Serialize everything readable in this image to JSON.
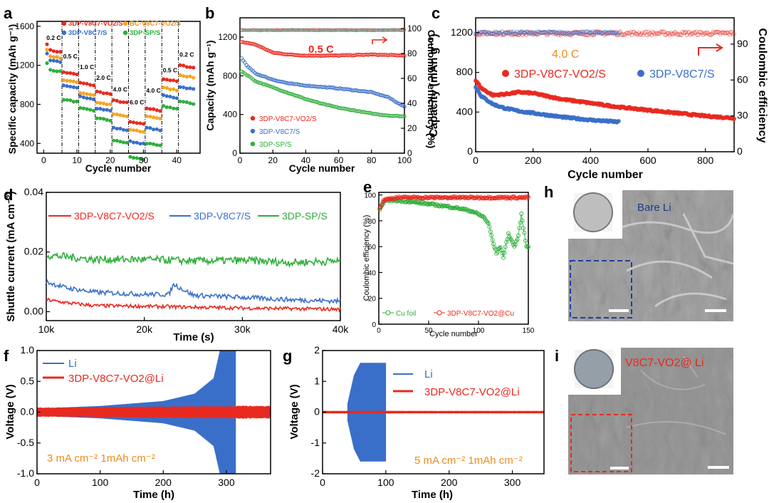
{
  "colors": {
    "red": "#e8291f",
    "blue": "#3a6fc9",
    "orange": "#f5a623",
    "green": "#2fae3b",
    "orange_text": "#f08a1c",
    "sem_gray": "#8c8c8c"
  },
  "panels": {
    "a": {
      "label": "a",
      "ylabel": "Specific capacity (mAh g⁻¹)",
      "xlabel": "Cycle number",
      "legend": [
        "3DP-V8C7-VO2/S",
        "BC-V8C7-VO2/S",
        "3DP-V8C7/S",
        "3DP-SP/S"
      ],
      "rates": [
        "0.2 C",
        "0.5 C",
        "1.0 C",
        "2.0 C",
        "4.0 C",
        "6.0 C",
        "4.0 C",
        "0.5 C",
        "0.2 C"
      ]
    },
    "b": {
      "label": "b",
      "ylabel": "Capacity (mAh g⁻¹)",
      "ylabel_right": "Coulombic efficiency (%)",
      "xlabel": "Cycle number",
      "rate": "0.5 C",
      "legend": [
        "3DP-V8C7-VO2/S",
        "3DP-V8C7/S",
        "3DP-SP/S"
      ]
    },
    "c": {
      "label": "c",
      "ylabel": "Capacity (mAh g⁻¹)",
      "ylabel_right": "Coulombic efficiency",
      "xlabel": "Cycle number",
      "rate": "4.0 C",
      "legend": [
        "3DP-V8C7-VO2/S",
        "3DP-V8C7/S"
      ]
    },
    "d": {
      "label": "d",
      "ylabel": "Shuttle current (mA cm⁻²)",
      "xlabel": "Time (s)",
      "legend": [
        "3DP-V8C7-VO2/S",
        "3DP-V8C7/S",
        "3DP-SP/S"
      ]
    },
    "e": {
      "label": "e",
      "ylabel": "Coulombic efficiency (%)",
      "xlabel": "Cycle number",
      "legend": [
        "Cu foil",
        "3DP-V8C7-VO2@Cu"
      ]
    },
    "f": {
      "label": "f",
      "ylabel": "Voltage (V)",
      "xlabel": "Time (h)",
      "legend": [
        "Li",
        "3DP-V8C7-VO2@Li"
      ],
      "condition": "3 mA cm⁻²  1mAh cm⁻²"
    },
    "g": {
      "label": "g",
      "ylabel": "Voltage (V)",
      "xlabel": "Time (h)",
      "legend": [
        "Li",
        "3DP-V8C7-VO2@Li"
      ],
      "condition": "5 mA cm⁻²  1mAh cm⁻²"
    },
    "h": {
      "label": "h",
      "caption": "Bare Li"
    },
    "i": {
      "label": "i",
      "caption": "V8C7-VO2@ Li"
    }
  },
  "chart_data": [
    {
      "panel": "a",
      "type": "scatter",
      "title": "",
      "xlabel": "Cycle number",
      "ylabel": "Specific capacity (mAh g-1)",
      "xlim": [
        -2,
        47
      ],
      "ylim": [
        300,
        1650
      ],
      "xticks": [
        0,
        10,
        20,
        30,
        40
      ],
      "yticks": [
        400,
        800,
        1200,
        1600
      ],
      "segment_boundaries": [
        5,
        10,
        15,
        20,
        25,
        30,
        35,
        40
      ],
      "series": [
        {
          "name": "3DP-V8C7-VO2/S",
          "color": "#e8291f",
          "segment_levels": [
            1360,
            1130,
            1020,
            930,
            840,
            620,
            760,
            1060,
            1200
          ]
        },
        {
          "name": "BC-V8C7-VO2/S",
          "color": "#f5a623",
          "segment_levels": [
            1300,
            1050,
            920,
            820,
            700,
            540,
            680,
            970,
            1100
          ]
        },
        {
          "name": "3DP-V8C7/S",
          "color": "#3a6fc9",
          "segment_levels": [
            1260,
            990,
            880,
            760,
            560,
            420,
            560,
            890,
            980
          ]
        },
        {
          "name": "3DP-SP/S",
          "color": "#2fae3b",
          "segment_levels": [
            1160,
            850,
            760,
            660,
            430,
            260,
            400,
            780,
            830
          ]
        }
      ]
    },
    {
      "panel": "b",
      "type": "scatter",
      "xlabel": "Cycle number",
      "ylabel": "Capacity (mAh g-1)",
      "ylabel_right": "Coulombic efficiency (%)",
      "xlim": [
        0,
        100
      ],
      "ylim": [
        0,
        1400
      ],
      "ylim_right": [
        0,
        100
      ],
      "xticks": [
        0,
        20,
        40,
        60,
        80,
        100
      ],
      "yticks": [
        0,
        400,
        800,
        1200
      ],
      "yticks_right": [
        0,
        20,
        40,
        60,
        80,
        100
      ],
      "series": [
        {
          "name": "3DP-V8C7-VO2/S",
          "color": "#e8291f",
          "x": [
            0,
            5,
            10,
            15,
            20,
            30,
            40,
            60,
            80,
            100
          ],
          "y": [
            1150,
            1140,
            1120,
            1080,
            1040,
            1020,
            1010,
            1010,
            1020,
            1010
          ]
        },
        {
          "name": "3DP-V8C7/S",
          "color": "#3a6fc9",
          "x": [
            0,
            5,
            10,
            20,
            30,
            40,
            60,
            80,
            90,
            100
          ],
          "y": [
            1000,
            890,
            820,
            760,
            720,
            700,
            670,
            630,
            580,
            480
          ]
        },
        {
          "name": "3DP-SP/S",
          "color": "#2fae3b",
          "x": [
            0,
            5,
            10,
            20,
            30,
            40,
            50,
            60,
            70,
            80,
            90,
            100
          ],
          "y": [
            860,
            800,
            740,
            680,
            620,
            560,
            510,
            470,
            440,
            410,
            390,
            380
          ]
        }
      ],
      "ce_series": [
        {
          "name": "CE",
          "axis": "right",
          "value": 99
        }
      ]
    },
    {
      "panel": "c",
      "type": "scatter",
      "xlabel": "Cycle number",
      "ylabel": "Capacity (mAh g-1)",
      "ylabel_right": "Coulombic efficiency",
      "xlim": [
        0,
        900
      ],
      "ylim": [
        0,
        1350
      ],
      "ylim_right": [
        0,
        112
      ],
      "xticks": [
        0,
        200,
        400,
        600,
        800
      ],
      "yticks": [
        0,
        400,
        800,
        1200
      ],
      "yticks_right": [
        0,
        30,
        60,
        90
      ],
      "series": [
        {
          "name": "3DP-V8C7-VO2/S",
          "color": "#e8291f",
          "x": [
            0,
            20,
            60,
            100,
            150,
            200,
            300,
            400,
            500,
            600,
            700,
            800,
            900
          ],
          "y": [
            720,
            640,
            570,
            580,
            600,
            590,
            530,
            490,
            450,
            420,
            390,
            360,
            340
          ]
        },
        {
          "name": "3DP-V8C7/S",
          "color": "#3a6fc9",
          "x": [
            0,
            20,
            60,
            100,
            150,
            200,
            300,
            400,
            500
          ],
          "y": [
            650,
            560,
            480,
            440,
            410,
            390,
            350,
            320,
            300
          ]
        }
      ]
    },
    {
      "panel": "d",
      "type": "line",
      "xlabel": "Time (s)",
      "ylabel": "Shuttle current (mA cm-2)",
      "xlim": [
        10000,
        40000
      ],
      "ylim": [
        -0.003,
        0.04
      ],
      "xticks": [
        10000,
        20000,
        30000,
        40000
      ],
      "xticklabels": [
        "10k",
        "20k",
        "30k",
        "40k"
      ],
      "yticks": [
        0.0,
        0.02,
        0.04
      ],
      "yticklabels": [
        "0.00",
        "0.02",
        "0.04"
      ],
      "series": [
        {
          "name": "3DP-V8C7-VO2/S",
          "color": "#e8291f",
          "x": [
            10000,
            12000,
            15000,
            20000,
            25000,
            30000,
            35000,
            40000
          ],
          "y": [
            0.004,
            0.003,
            0.002,
            0.0018,
            0.0015,
            0.0012,
            0.001,
            0.0008
          ]
        },
        {
          "name": "3DP-V8C7/S",
          "color": "#3a6fc9",
          "x": [
            10000,
            12000,
            15000,
            20000,
            22500,
            23000,
            25000,
            30000,
            35000,
            40000
          ],
          "y": [
            0.01,
            0.008,
            0.0065,
            0.0058,
            0.0058,
            0.0092,
            0.0055,
            0.0048,
            0.004,
            0.0035
          ]
        },
        {
          "name": "3DP-SP/S",
          "color": "#2fae3b",
          "x": [
            10000,
            15000,
            20000,
            25000,
            30000,
            35000,
            40000
          ],
          "y": [
            0.019,
            0.0175,
            0.0175,
            0.017,
            0.0172,
            0.0165,
            0.017
          ]
        }
      ]
    },
    {
      "panel": "e",
      "type": "scatter",
      "xlabel": "Cycle number",
      "ylabel": "Coulombic efficiency (%)",
      "xlim": [
        0,
        150
      ],
      "ylim": [
        0,
        102
      ],
      "xticks": [
        0,
        50,
        100,
        150
      ],
      "yticks": [
        0,
        20,
        40,
        60,
        80,
        100
      ],
      "series": [
        {
          "name": "Cu foil",
          "color": "#2fae3b",
          "x": [
            1,
            5,
            10,
            30,
            50,
            70,
            85,
            95,
            105,
            110,
            115,
            118,
            122,
            125,
            130,
            133,
            136,
            140,
            143,
            146,
            148
          ],
          "y": [
            88,
            95,
            96,
            95,
            93,
            91,
            89,
            87,
            83,
            78,
            62,
            55,
            60,
            52,
            70,
            65,
            60,
            68,
            85,
            70,
            60
          ]
        },
        {
          "name": "3DP-V8C7-VO2@Cu",
          "color": "#e8291f",
          "x": [
            1,
            5,
            10,
            20,
            40,
            60,
            80,
            100,
            120,
            140,
            150
          ],
          "y": [
            90,
            96,
            97,
            98,
            98,
            98,
            98,
            98,
            98,
            98,
            98
          ]
        }
      ]
    },
    {
      "panel": "f",
      "type": "line",
      "xlabel": "Time (h)",
      "ylabel": "Voltage (V)",
      "xlim": [
        0,
        370
      ],
      "ylim": [
        -1.0,
        1.0
      ],
      "xticks": [
        0,
        100,
        200,
        300
      ],
      "yticks": [
        -1.0,
        -0.5,
        0.0,
        0.5,
        1.0
      ],
      "yticklabels": [
        "-1.0",
        "-0.5",
        "0.0",
        "0.5",
        "1.0"
      ],
      "series": [
        {
          "name": "Li",
          "color": "#3a6fc9",
          "envelope_t": [
            0,
            100,
            200,
            250,
            280,
            290,
            315
          ],
          "envelope_amp": [
            0.06,
            0.1,
            0.18,
            0.3,
            0.55,
            1.0,
            1.0
          ]
        },
        {
          "name": "3DP-V8C7-VO2@Li",
          "color": "#e8291f",
          "envelope_t": [
            0,
            370
          ],
          "envelope_amp": [
            0.07,
            0.1
          ]
        }
      ]
    },
    {
      "panel": "g",
      "type": "line",
      "xlabel": "Time (h)",
      "ylabel": "Voltage (V)",
      "xlim": [
        0,
        350
      ],
      "ylim": [
        -2,
        2
      ],
      "xticks": [
        0,
        100,
        200,
        300
      ],
      "yticks": [
        -2,
        -1,
        0,
        1,
        2
      ],
      "series": [
        {
          "name": "Li",
          "color": "#3a6fc9",
          "envelope_t": [
            40,
            50,
            60,
            100
          ],
          "envelope_amp": [
            0.3,
            1.2,
            1.6,
            1.6
          ]
        },
        {
          "name": "3DP-V8C7-VO2@Li",
          "color": "#e8291f",
          "envelope_t": [
            0,
            350
          ],
          "envelope_amp": [
            0.04,
            0.04
          ]
        }
      ]
    }
  ]
}
